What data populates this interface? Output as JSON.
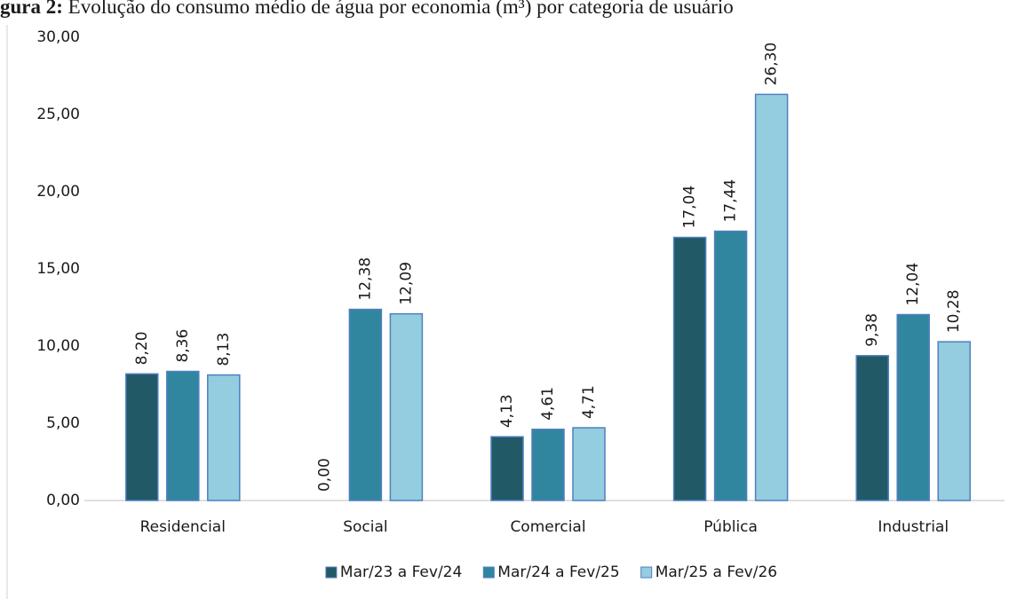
{
  "chart_data": {
    "type": "bar",
    "title_label": "gura 2:",
    "title": "Evolução do consumo médio de água por economia (m³) por categoria de usuário",
    "categories": [
      "Residencial",
      "Social",
      "Comercial",
      "Pública",
      "Industrial"
    ],
    "series": [
      {
        "name": "Mar/23 a Fev/24",
        "color": "#215a66",
        "values": [
          8.2,
          0.0,
          4.13,
          17.04,
          9.38
        ],
        "value_labels": [
          "8,20",
          "0,00",
          "4,13",
          "17,04",
          "9,38"
        ]
      },
      {
        "name": "Mar/24 a Fev/25",
        "color": "#31869f",
        "values": [
          8.36,
          12.38,
          4.61,
          17.44,
          12.04
        ],
        "value_labels": [
          "8,36",
          "12,38",
          "4,61",
          "17,44",
          "12,04"
        ]
      },
      {
        "name": "Mar/25 a Fev/26",
        "color": "#93cddf",
        "values": [
          8.13,
          12.09,
          4.71,
          26.3,
          10.28
        ],
        "value_labels": [
          "8,13",
          "12,09",
          "4,71",
          "26,30",
          "10,28"
        ]
      }
    ],
    "ylim": [
      0,
      30
    ],
    "yticks": [
      {
        "value": 0,
        "label": "0,00"
      },
      {
        "value": 5,
        "label": "5,00"
      },
      {
        "value": 10,
        "label": "10,00"
      },
      {
        "value": 15,
        "label": "15,00"
      },
      {
        "value": 20,
        "label": "20,00"
      },
      {
        "value": 25,
        "label": "25,00"
      },
      {
        "value": 30,
        "label": "30,00"
      }
    ],
    "grid": false,
    "legend": "bottom"
  }
}
